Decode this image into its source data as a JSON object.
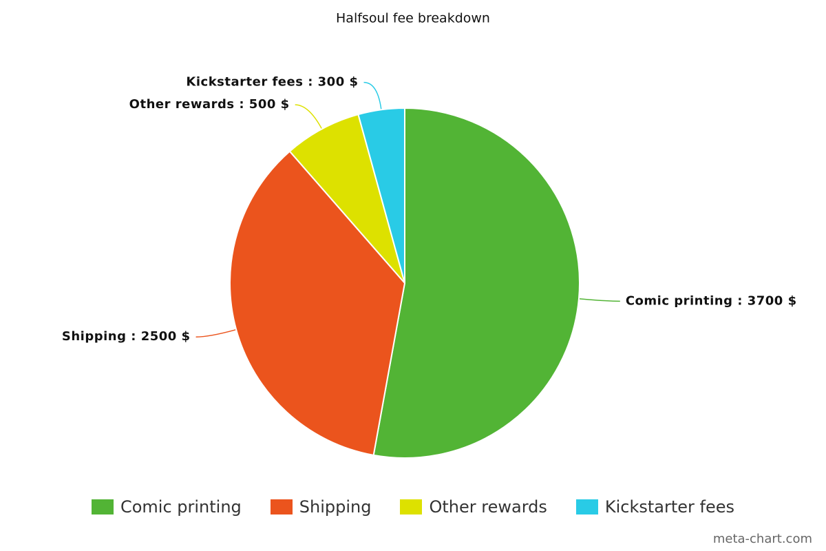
{
  "chart_data": {
    "type": "pie",
    "title": "Halfsoul fee breakdown",
    "categories": [
      "Comic printing",
      "Shipping",
      "Other rewards",
      "Kickstarter fees"
    ],
    "values": [
      3700,
      2500,
      500,
      300
    ],
    "value_labels": [
      "Comic printing : 3700 $",
      "Shipping : 2500 $",
      "Other rewards : 500 $",
      "Kickstarter fees : 300 $"
    ],
    "colors": [
      "#52b435",
      "#eb541d",
      "#dde100",
      "#29cbe6"
    ],
    "legend": "bottom",
    "credit": "meta-chart.com"
  }
}
